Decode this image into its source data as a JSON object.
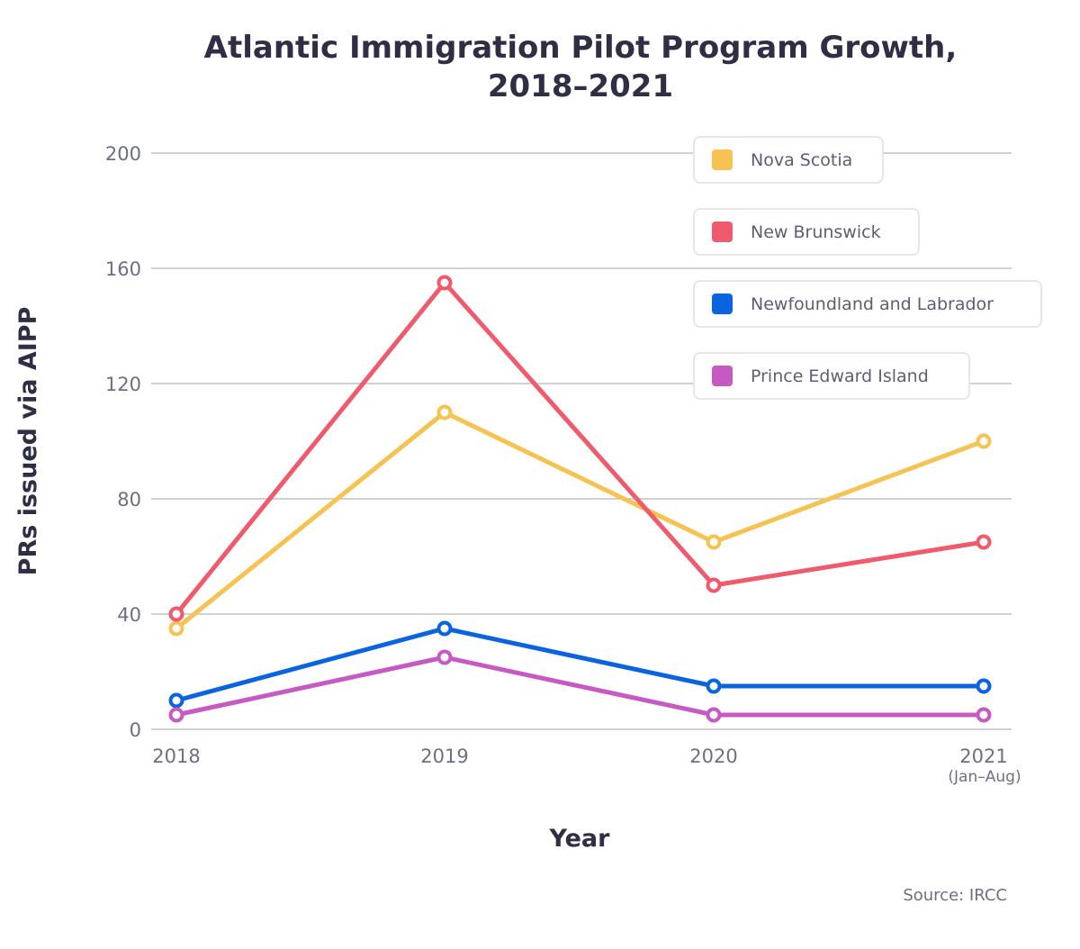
{
  "chart_data": {
    "type": "line",
    "title_lines": [
      "Atlantic Immigration Pilot Program Growth,",
      "2018–2021"
    ],
    "xlabel": "Year",
    "ylabel": "PRs issued via AIPP",
    "categories": [
      "2018",
      "2019",
      "2020",
      "2021"
    ],
    "category_sublabels": [
      "",
      "",
      "",
      "(Jan–Aug)"
    ],
    "ylim": [
      0,
      200
    ],
    "yticks": [
      "0",
      "40",
      "80",
      "120",
      "160",
      "200"
    ],
    "grid": "horizontal",
    "legend_position": "top-right",
    "series": [
      {
        "name": "Nova Scotia",
        "color": "#f6c251",
        "values": [
          35,
          110,
          65,
          100
        ]
      },
      {
        "name": "New Brunswick",
        "color": "#ef5b6c",
        "values": [
          40,
          155,
          50,
          65
        ]
      },
      {
        "name": "Newfoundland and Labrador",
        "color": "#0a64e0",
        "values": [
          10,
          35,
          15,
          15
        ]
      },
      {
        "name": "Prince Edward Island",
        "color": "#c75ac2",
        "values": [
          5,
          25,
          5,
          5
        ]
      }
    ],
    "source": "Source: IRCC"
  }
}
